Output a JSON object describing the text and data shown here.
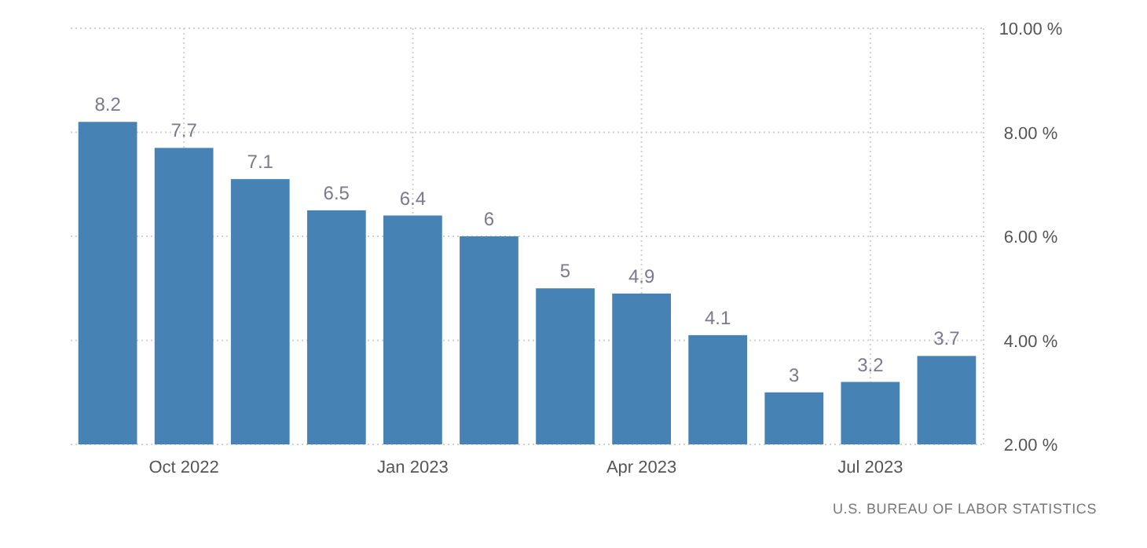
{
  "chart_data": {
    "type": "bar",
    "categories": [
      null,
      "Oct 2022",
      null,
      null,
      "Jan 2023",
      null,
      null,
      "Apr 2023",
      null,
      null,
      "Jul 2023",
      null
    ],
    "values": [
      8.2,
      7.7,
      7.1,
      6.5,
      6.4,
      6,
      5,
      4.9,
      4.1,
      3,
      3.2,
      3.7
    ],
    "color": "#4682b4",
    "ylim": [
      2,
      10
    ],
    "yticks": [
      {
        "value": 2,
        "label": "2.00 %"
      },
      {
        "value": 4,
        "label": "4.00 %"
      },
      {
        "value": 6,
        "label": "6.00 %"
      },
      {
        "value": 8,
        "label": "8.00 %"
      },
      {
        "value": 10,
        "label": "10.00 %"
      }
    ],
    "grid": true,
    "data_labels": true,
    "annotations": [
      "U.S. BUREAU OF LABOR STATISTICS"
    ]
  }
}
